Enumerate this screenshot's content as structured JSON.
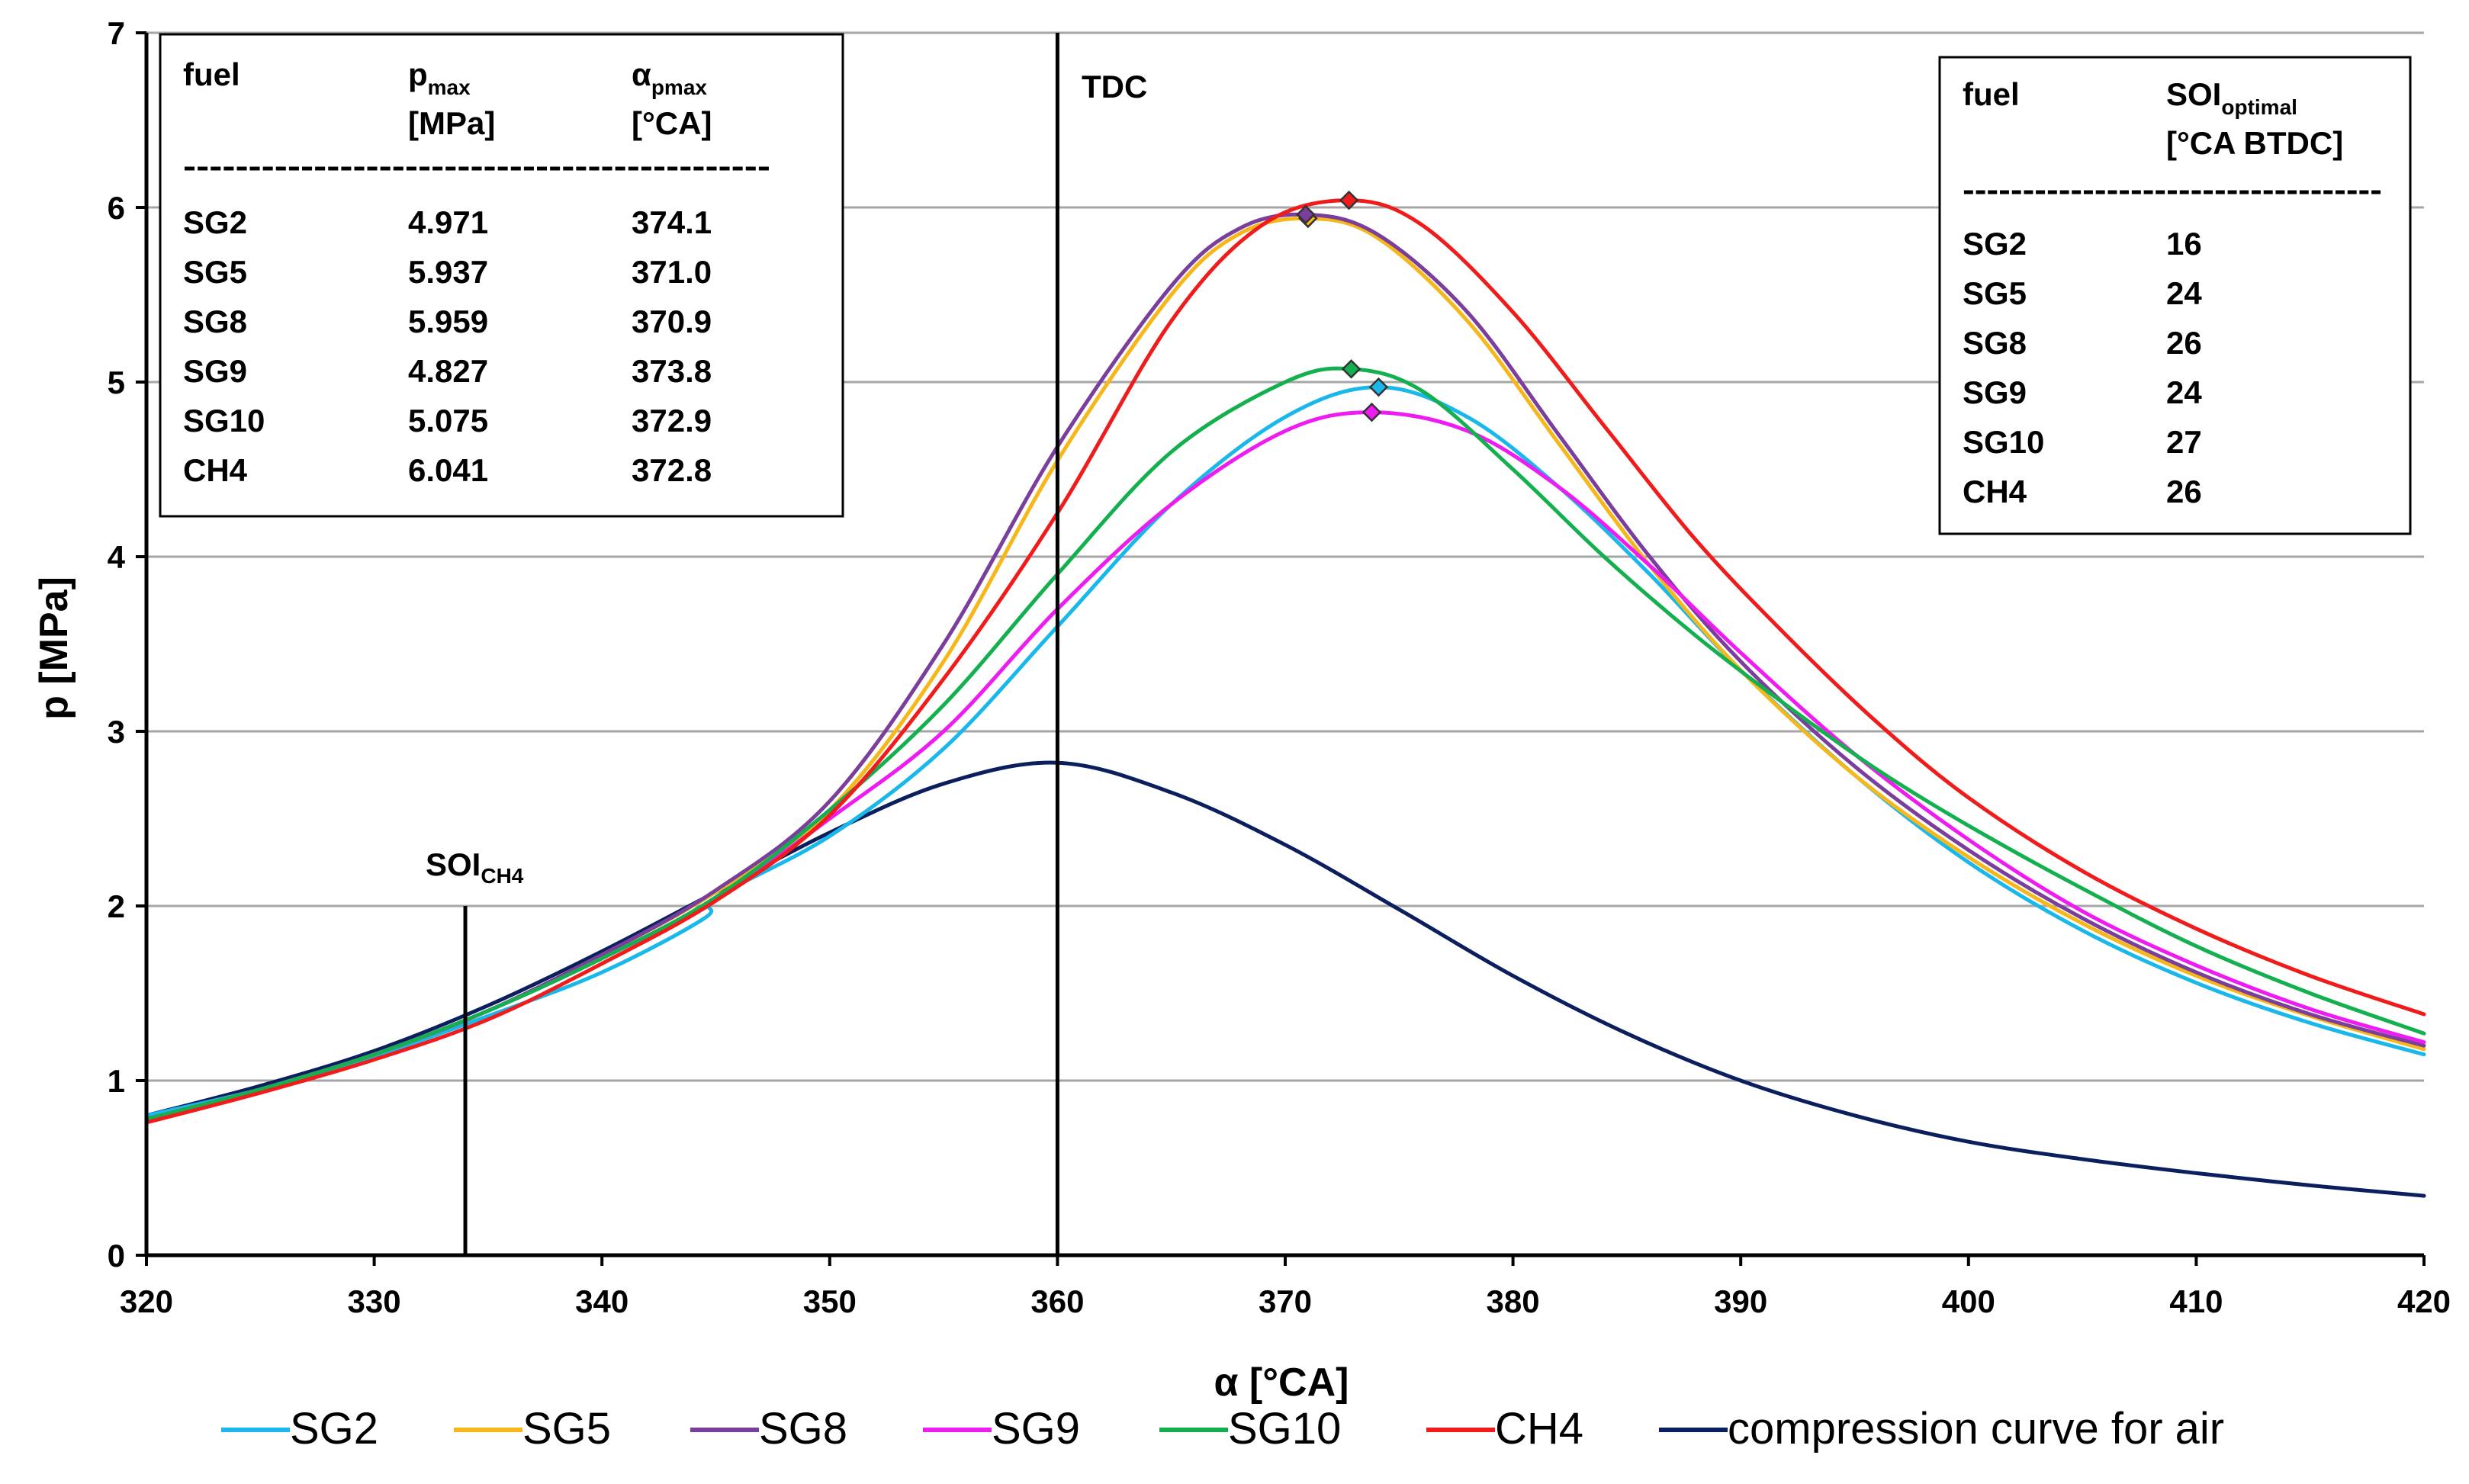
{
  "chart_data": {
    "type": "line",
    "title": "",
    "xlabel": "α [°CA]",
    "ylabel": "p [MPa]",
    "xlim": [
      320,
      420
    ],
    "ylim": [
      0,
      7
    ],
    "xticks": [
      "320",
      "330",
      "340",
      "350",
      "360",
      "370",
      "380",
      "390",
      "400",
      "410",
      "420"
    ],
    "yticks": [
      "0",
      "1",
      "2",
      "3",
      "4",
      "5",
      "6",
      "7"
    ],
    "grid": "horizontal",
    "legend_position": "bottom",
    "series": [
      {
        "name": "SG2",
        "color": "#1ab8ea",
        "x": [
          320,
          325,
          330,
          335,
          340,
          344.5,
          345,
          350,
          355,
          360,
          365,
          370,
          374.1,
          378,
          382,
          386,
          390,
          395,
          400,
          405,
          410,
          415,
          420
        ],
        "y": [
          0.8,
          0.95,
          1.14,
          1.37,
          1.62,
          1.93,
          2.05,
          2.4,
          2.9,
          3.6,
          4.3,
          4.8,
          4.971,
          4.8,
          4.4,
          3.9,
          3.35,
          2.75,
          2.25,
          1.86,
          1.56,
          1.33,
          1.15
        ]
      },
      {
        "name": "SG5",
        "color": "#f6b71b",
        "x": [
          320,
          325,
          330,
          335,
          340,
          345,
          350,
          355,
          360,
          365,
          368,
          371,
          374,
          378,
          382,
          386,
          390,
          395,
          400,
          405,
          410,
          415,
          420
        ],
        "y": [
          0.78,
          0.95,
          1.15,
          1.4,
          1.72,
          2.08,
          2.55,
          3.4,
          4.55,
          5.5,
          5.85,
          5.937,
          5.83,
          5.35,
          4.65,
          3.95,
          3.35,
          2.75,
          2.28,
          1.9,
          1.6,
          1.37,
          1.18
        ]
      },
      {
        "name": "SG8",
        "color": "#7a3f9c",
        "x": [
          320,
          325,
          330,
          335,
          340,
          345,
          350,
          355,
          360,
          365,
          368,
          370.9,
          374,
          378,
          382,
          386,
          390,
          395,
          400,
          405,
          410,
          415,
          420
        ],
        "y": [
          0.78,
          0.95,
          1.15,
          1.4,
          1.72,
          2.09,
          2.6,
          3.5,
          4.63,
          5.55,
          5.88,
          5.959,
          5.85,
          5.4,
          4.7,
          4.0,
          3.4,
          2.8,
          2.32,
          1.93,
          1.62,
          1.38,
          1.2
        ]
      },
      {
        "name": "SG9",
        "color": "#ee1cf0",
        "x": [
          320,
          325,
          330,
          335,
          340,
          345,
          350,
          355,
          360,
          365,
          370,
          373.8,
          378,
          382,
          386,
          390,
          395,
          400,
          405,
          410,
          415,
          420
        ],
        "y": [
          0.78,
          0.95,
          1.15,
          1.4,
          1.7,
          2.04,
          2.5,
          3.0,
          3.7,
          4.3,
          4.72,
          4.827,
          4.72,
          4.4,
          3.95,
          3.45,
          2.87,
          2.38,
          1.97,
          1.66,
          1.41,
          1.22
        ]
      },
      {
        "name": "SG10",
        "color": "#14b04f",
        "x": [
          320,
          325,
          330,
          335,
          340,
          345,
          350,
          355,
          360,
          365,
          370,
          372.9,
          376,
          380,
          384,
          388,
          392,
          396,
          400,
          405,
          410,
          415,
          420
        ],
        "y": [
          0.78,
          0.95,
          1.15,
          1.4,
          1.7,
          2.05,
          2.55,
          3.15,
          3.9,
          4.6,
          5.0,
          5.075,
          4.95,
          4.5,
          4.0,
          3.55,
          3.15,
          2.78,
          2.46,
          2.1,
          1.77,
          1.5,
          1.27
        ]
      },
      {
        "name": "CH4",
        "color": "#f01b1b",
        "x": [
          320,
          325,
          330,
          335,
          340,
          345,
          350,
          355,
          360,
          365,
          369,
          372.8,
          376,
          380,
          384,
          388,
          392,
          396,
          400,
          405,
          410,
          415,
          420
        ],
        "y": [
          0.76,
          0.93,
          1.12,
          1.35,
          1.67,
          2.03,
          2.52,
          3.3,
          4.25,
          5.35,
          5.9,
          6.041,
          5.9,
          5.4,
          4.75,
          4.1,
          3.55,
          3.05,
          2.62,
          2.2,
          1.87,
          1.6,
          1.38
        ]
      },
      {
        "name": "compression curve for air",
        "color": "#0b1f5e",
        "x": [
          320,
          325,
          330,
          335,
          340,
          345,
          350,
          355,
          360,
          365,
          370,
          375,
          380,
          385,
          390,
          395,
          400,
          405,
          410,
          415,
          420
        ],
        "y": [
          0.8,
          0.97,
          1.17,
          1.43,
          1.74,
          2.08,
          2.42,
          2.7,
          2.82,
          2.65,
          2.35,
          1.98,
          1.6,
          1.27,
          1.0,
          0.8,
          0.65,
          0.55,
          0.47,
          0.4,
          0.34
        ]
      }
    ],
    "peak_markers": [
      {
        "series": "SG2",
        "x": 374.1,
        "y": 4.971
      },
      {
        "series": "SG5",
        "x": 371.0,
        "y": 5.937
      },
      {
        "series": "SG8",
        "x": 370.9,
        "y": 5.959
      },
      {
        "series": "SG9",
        "x": 373.8,
        "y": 4.827
      },
      {
        "series": "SG10",
        "x": 372.9,
        "y": 5.075
      },
      {
        "series": "CH4",
        "x": 372.8,
        "y": 6.041
      }
    ],
    "vertical_lines": [
      {
        "label": "TDC",
        "x": 360,
        "y_top": 7
      },
      {
        "label": "SOI",
        "label_sub": "CH4",
        "x": 334,
        "y_top": 2
      }
    ]
  },
  "table_pmax": {
    "col1": "fuel",
    "col2": "p",
    "col2_sub": "max",
    "col2_unit": "[MPa]",
    "col3": "α",
    "col3_sub": "pmax",
    "col3_unit": "[°CA]",
    "separator": "---------------------------------------------",
    "rows": [
      {
        "fuel": "SG2",
        "pmax": "4.971",
        "apmax": "374.1"
      },
      {
        "fuel": "SG5",
        "pmax": "5.937",
        "apmax": "371.0"
      },
      {
        "fuel": "SG8",
        "pmax": "5.959",
        "apmax": "370.9"
      },
      {
        "fuel": "SG9",
        "pmax": "4.827",
        "apmax": "373.8"
      },
      {
        "fuel": "SG10",
        "pmax": "5.075",
        "apmax": "372.9"
      },
      {
        "fuel": "CH4",
        "pmax": "6.041",
        "apmax": "372.8"
      }
    ]
  },
  "table_soi": {
    "col1": "fuel",
    "col2": "SOI",
    "col2_sub": "optimal",
    "col2_unit": "[°CA BTDC]",
    "separator": "-----------------------------------",
    "rows": [
      {
        "fuel": "SG2",
        "soi": "16"
      },
      {
        "fuel": "SG5",
        "soi": "24"
      },
      {
        "fuel": "SG8",
        "soi": "26"
      },
      {
        "fuel": "SG9",
        "soi": "24"
      },
      {
        "fuel": "SG10",
        "soi": "27"
      },
      {
        "fuel": "CH4",
        "soi": "26"
      }
    ]
  }
}
